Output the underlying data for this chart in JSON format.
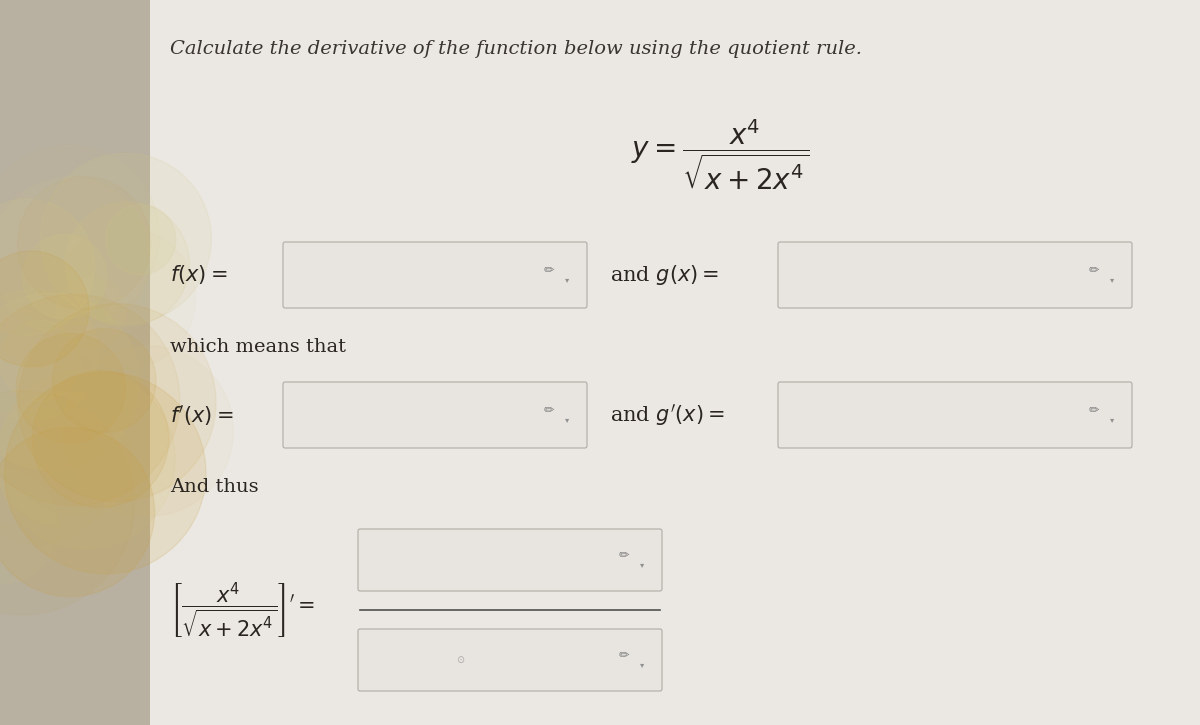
{
  "title": "Calculate the derivative of the function below using the quotient rule.",
  "title_fontsize": 14,
  "title_color": "#3a3530",
  "bg_left_color": "#c8bfb0",
  "bg_right_color": "#f0eeeb",
  "box_fill_color": "#e8e5e0",
  "box_edge_color": "#b0aba4",
  "text_color": "#2a2520",
  "pencil_icon": "✏",
  "main_eq": "$y = \\dfrac{x^4}{\\sqrt{x + 2x^4}}$",
  "label_fx": "$f(x) = $",
  "label_gx": "and $g(x) = $",
  "label_wmt": "which means that",
  "label_fpx": "$f'(x) = $",
  "label_gpx": "and $g'(x) = $",
  "label_thus": "And thus",
  "bot_formula": "$\\left[\\dfrac{x^4}{\\sqrt{x+2x^4}}\\right]' = $",
  "fig_w": 12.0,
  "fig_h": 7.25,
  "dpi": 100
}
